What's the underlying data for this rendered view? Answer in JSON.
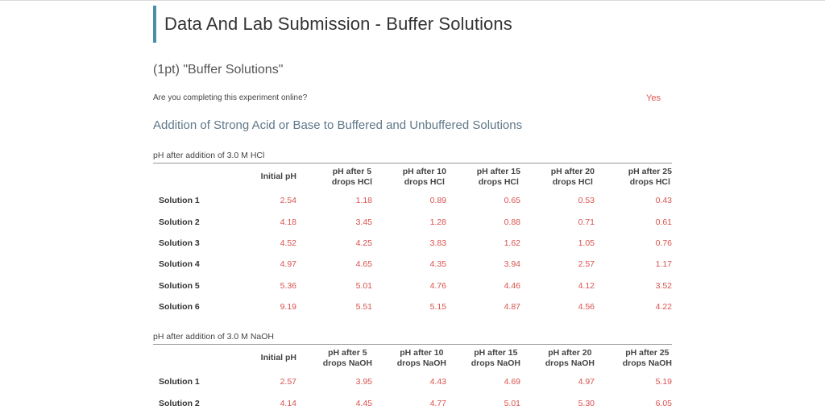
{
  "page_title": "Data And Lab Submission - Buffer Solutions",
  "question_title": "(1pt) \"Buffer Solutions\"",
  "online_question": {
    "label": "Are you completing this experiment online?",
    "answer": "Yes"
  },
  "section_title": "Addition of Strong Acid or Base to Buffered and Unbuffered Solutions",
  "hcl_table": {
    "caption": "pH after addition of 3.0 M HCl",
    "headers": [
      [
        "Initial pH"
      ],
      [
        "pH after 5",
        "drops HCl"
      ],
      [
        "pH after 10",
        "drops HCl"
      ],
      [
        "pH after 15",
        "drops HCl"
      ],
      [
        "pH after 20",
        "drops HCl"
      ],
      [
        "pH after 25",
        "drops HCl"
      ]
    ],
    "rows": [
      {
        "label": "Solution 1",
        "values": [
          "2.54",
          "1.18",
          "0.89",
          "0.65",
          "0.53",
          "0.43"
        ]
      },
      {
        "label": "Solution 2",
        "values": [
          "4.18",
          "3.45",
          "1.28",
          "0.88",
          "0.71",
          "0.61"
        ]
      },
      {
        "label": "Solution 3",
        "values": [
          "4.52",
          "4.25",
          "3.83",
          "1.62",
          "1.05",
          "0.76"
        ]
      },
      {
        "label": "Solution 4",
        "values": [
          "4.97",
          "4.65",
          "4.35",
          "3.94",
          "2.57",
          "1.17"
        ]
      },
      {
        "label": "Solution 5",
        "values": [
          "5.36",
          "5.01",
          "4.76",
          "4.46",
          "4.12",
          "3.52"
        ]
      },
      {
        "label": "Solution 6",
        "values": [
          "9.19",
          "5.51",
          "5.15",
          "4.87",
          "4.56",
          "4.22"
        ]
      }
    ]
  },
  "naoh_table": {
    "caption": "pH after addition of 3.0 M NaOH",
    "headers": [
      [
        "Initial pH"
      ],
      [
        "pH after 5",
        "drops NaOH"
      ],
      [
        "pH after 10",
        "drops NaOH"
      ],
      [
        "pH after 15",
        "drops NaOH"
      ],
      [
        "pH after 20",
        "drops NaOH"
      ],
      [
        "pH after 25",
        "drops NaOH"
      ]
    ],
    "rows": [
      {
        "label": "Solution 1",
        "values": [
          "2.57",
          "3.95",
          "4.43",
          "4.69",
          "4.97",
          "5.19"
        ]
      },
      {
        "label": "Solution 2",
        "values": [
          "4.14",
          "4.45",
          "4.77",
          "5.01",
          "5.30",
          "6.05"
        ]
      }
    ]
  },
  "colors": {
    "accent_bar": "#4a90a4",
    "answer_red": "#d9534f",
    "section_title": "#5f7889"
  }
}
